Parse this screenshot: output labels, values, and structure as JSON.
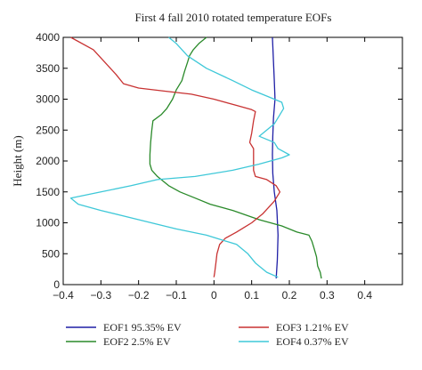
{
  "chart_data": {
    "type": "line",
    "title": "First 4 fall 2010 rotated temperature EOFs",
    "xlabel": "",
    "ylabel": "Height (m)",
    "xlim": [
      -0.4,
      0.5
    ],
    "ylim": [
      0,
      4000
    ],
    "x_ticks": [
      -0.4,
      -0.3,
      -0.2,
      -0.1,
      0,
      0.1,
      0.2,
      0.3,
      0.4
    ],
    "x_tick_labels": [
      "−0.4",
      "−0.3",
      "−0.2",
      "−0.1",
      "0",
      "0.1",
      "0.2",
      "0.3",
      "0.4"
    ],
    "y_ticks": [
      0,
      500,
      1000,
      1500,
      2000,
      2500,
      3000,
      3500,
      4000
    ],
    "y_tick_labels": [
      "0",
      "500",
      "1000",
      "1500",
      "2000",
      "2500",
      "3000",
      "3500",
      "4000"
    ],
    "grid": false,
    "legend_position": "bottom",
    "series": [
      {
        "name": "EOF1 95.35% EV",
        "color": "#1f1fa6",
        "points": [
          [
            0.165,
            100
          ],
          [
            0.168,
            400
          ],
          [
            0.17,
            800
          ],
          [
            0.167,
            1200
          ],
          [
            0.16,
            1500
          ],
          [
            0.156,
            1800
          ],
          [
            0.155,
            2100
          ],
          [
            0.156,
            2400
          ],
          [
            0.158,
            2700
          ],
          [
            0.162,
            3000
          ],
          [
            0.16,
            3300
          ],
          [
            0.158,
            3600
          ],
          [
            0.155,
            4000
          ]
        ]
      },
      {
        "name": "EOF2 2.5% EV",
        "color": "#2a8a2a",
        "points": [
          [
            0.285,
            100
          ],
          [
            0.282,
            200
          ],
          [
            0.275,
            300
          ],
          [
            0.272,
            450
          ],
          [
            0.265,
            600
          ],
          [
            0.26,
            700
          ],
          [
            0.252,
            800
          ],
          [
            0.22,
            850
          ],
          [
            0.18,
            950
          ],
          [
            0.12,
            1050
          ],
          [
            0.05,
            1200
          ],
          [
            -0.01,
            1300
          ],
          [
            -0.05,
            1400
          ],
          [
            -0.09,
            1500
          ],
          [
            -0.12,
            1600
          ],
          [
            -0.15,
            1750
          ],
          [
            -0.165,
            1850
          ],
          [
            -0.17,
            1950
          ],
          [
            -0.17,
            2100
          ],
          [
            -0.168,
            2300
          ],
          [
            -0.165,
            2500
          ],
          [
            -0.162,
            2650
          ],
          [
            -0.14,
            2750
          ],
          [
            -0.125,
            2850
          ],
          [
            -0.11,
            3000
          ],
          [
            -0.1,
            3150
          ],
          [
            -0.085,
            3300
          ],
          [
            -0.078,
            3450
          ],
          [
            -0.07,
            3600
          ],
          [
            -0.065,
            3700
          ],
          [
            -0.055,
            3800
          ],
          [
            -0.04,
            3900
          ],
          [
            -0.02,
            4000
          ]
        ]
      },
      {
        "name": "EOF3 1.21% EV",
        "color": "#c83232",
        "points": [
          [
            0.0,
            120
          ],
          [
            0.002,
            200
          ],
          [
            0.005,
            350
          ],
          [
            0.008,
            500
          ],
          [
            0.015,
            650
          ],
          [
            0.03,
            750
          ],
          [
            0.06,
            850
          ],
          [
            0.1,
            1000
          ],
          [
            0.13,
            1150
          ],
          [
            0.16,
            1350
          ],
          [
            0.175,
            1500
          ],
          [
            0.165,
            1600
          ],
          [
            0.14,
            1700
          ],
          [
            0.11,
            1750
          ],
          [
            0.105,
            1850
          ],
          [
            0.105,
            2000
          ],
          [
            0.105,
            2200
          ],
          [
            0.095,
            2300
          ],
          [
            0.1,
            2450
          ],
          [
            0.105,
            2650
          ],
          [
            0.11,
            2800
          ],
          [
            0.1,
            2830
          ],
          [
            0.06,
            2900
          ],
          [
            0.0,
            3000
          ],
          [
            -0.06,
            3080
          ],
          [
            -0.13,
            3130
          ],
          [
            -0.2,
            3180
          ],
          [
            -0.24,
            3250
          ],
          [
            -0.26,
            3400
          ],
          [
            -0.29,
            3600
          ],
          [
            -0.32,
            3800
          ],
          [
            -0.38,
            4000
          ]
        ]
      },
      {
        "name": "EOF4 0.37% EV",
        "color": "#3ec8d8",
        "points": [
          [
            0.17,
            120
          ],
          [
            0.14,
            200
          ],
          [
            0.11,
            350
          ],
          [
            0.09,
            500
          ],
          [
            0.06,
            650
          ],
          [
            -0.02,
            800
          ],
          [
            -0.1,
            900
          ],
          [
            -0.2,
            1050
          ],
          [
            -0.3,
            1200
          ],
          [
            -0.36,
            1300
          ],
          [
            -0.38,
            1400
          ],
          [
            -0.3,
            1500
          ],
          [
            -0.22,
            1600
          ],
          [
            -0.15,
            1700
          ],
          [
            -0.05,
            1750
          ],
          [
            0.05,
            1850
          ],
          [
            0.12,
            1950
          ],
          [
            0.18,
            2050
          ],
          [
            0.2,
            2100
          ],
          [
            0.17,
            2200
          ],
          [
            0.16,
            2300
          ],
          [
            0.14,
            2350
          ],
          [
            0.12,
            2400
          ],
          [
            0.14,
            2500
          ],
          [
            0.16,
            2600
          ],
          [
            0.175,
            2750
          ],
          [
            0.185,
            2850
          ],
          [
            0.18,
            2950
          ],
          [
            0.14,
            3050
          ],
          [
            0.1,
            3150
          ],
          [
            0.05,
            3300
          ],
          [
            -0.02,
            3500
          ],
          [
            -0.07,
            3700
          ],
          [
            -0.1,
            3900
          ],
          [
            -0.12,
            4000
          ]
        ]
      }
    ]
  }
}
